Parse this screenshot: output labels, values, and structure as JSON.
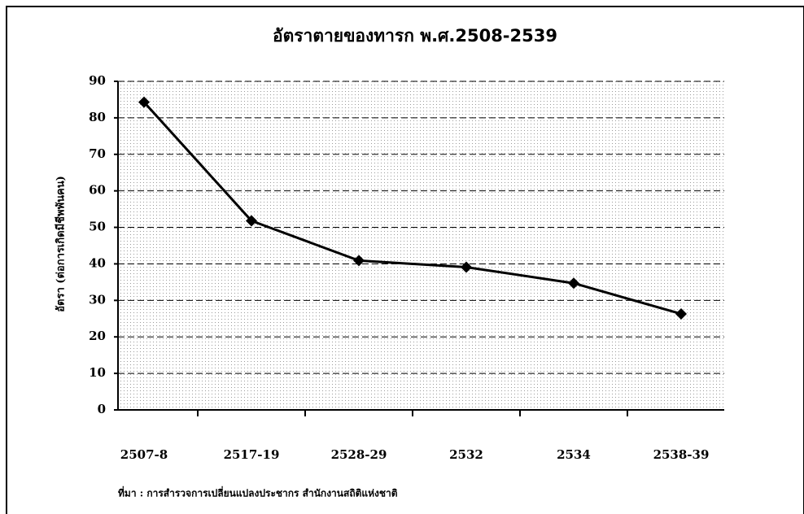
{
  "chart_data": {
    "type": "line",
    "title": "อัตราตายของทารก พ.ศ.2508-2539",
    "y_label": "อัตรา (ต่อการเกิดมีชีพพันคน)",
    "source": "ที่มา : การสำรวจการเปลี่ยนแปลงประชากร สำนักงานสถิติแห่งชาติ",
    "categories": [
      "2507-8",
      "2517-19",
      "2528-29",
      "2532",
      "2534",
      "2538-39"
    ],
    "series": [
      {
        "name": "อัตราตายของทารก",
        "color": "#000000",
        "values": [
          84.3,
          51.8,
          40.9,
          39.1,
          34.7,
          26.3
        ]
      }
    ],
    "ylim": [
      0,
      90
    ],
    "yticks": [
      0,
      10,
      20,
      30,
      40,
      50,
      60,
      70,
      80,
      90
    ],
    "grid": true
  }
}
